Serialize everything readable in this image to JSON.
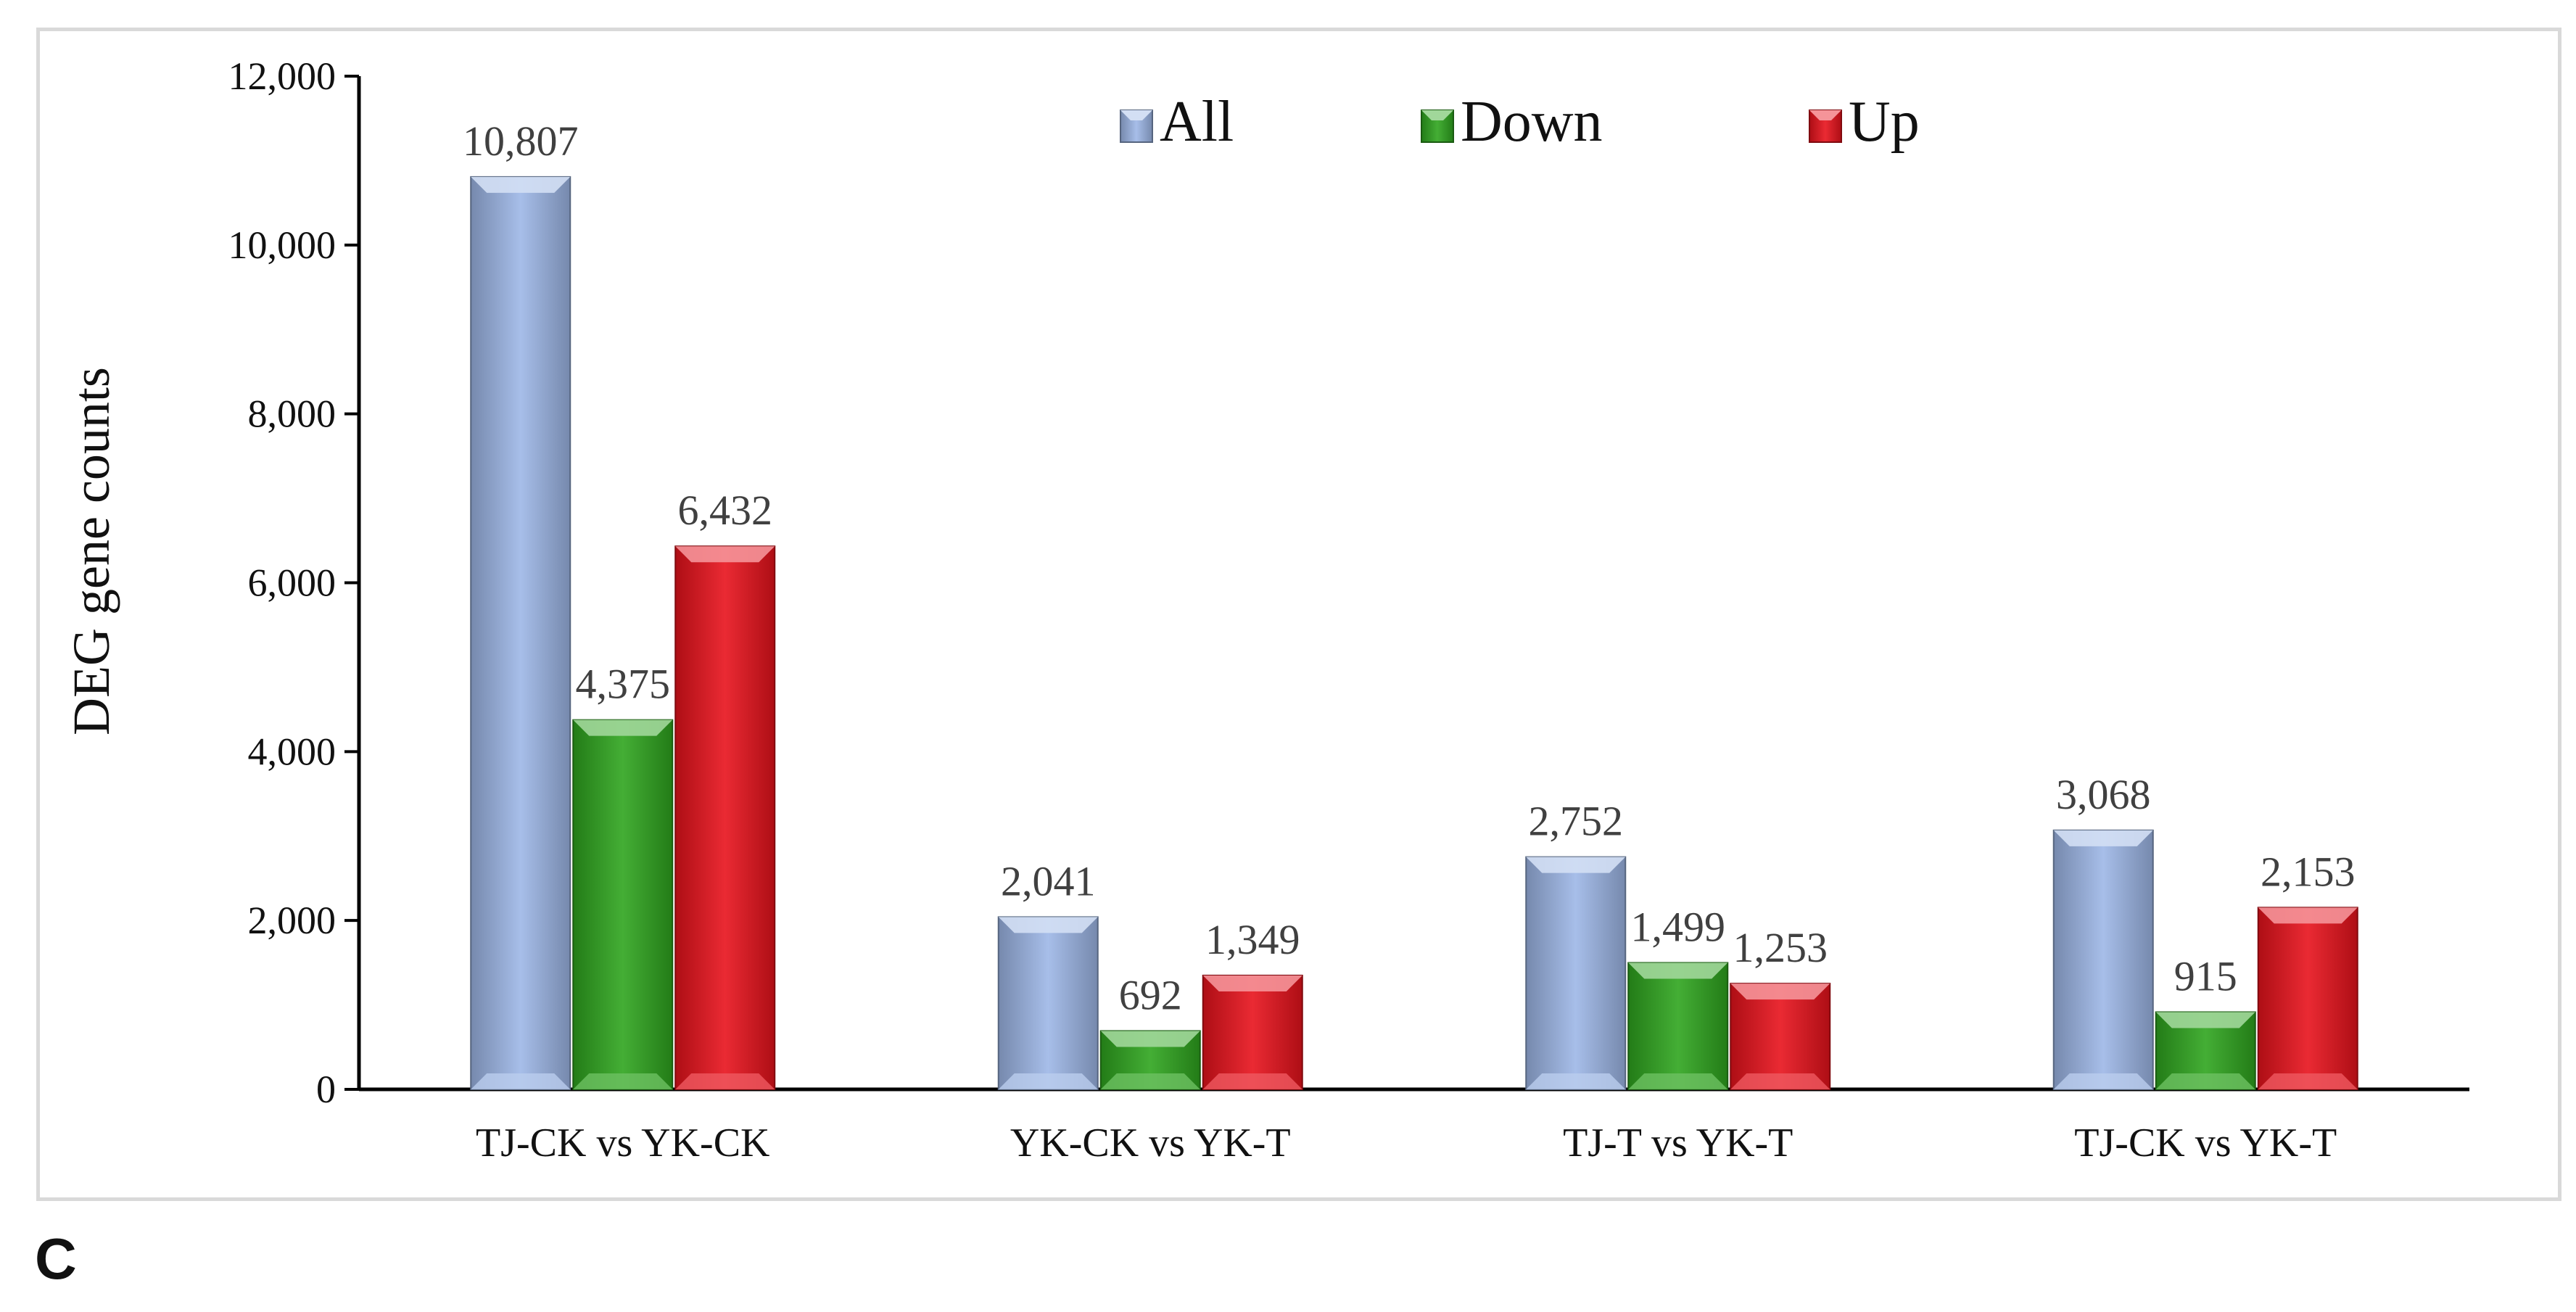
{
  "chart_data": {
    "type": "bar",
    "categories": [
      "TJ-CK vs YK-CK",
      "YK-CK vs YK-T",
      "TJ-T vs YK-T",
      "TJ-CK vs YK-T"
    ],
    "series": [
      {
        "name": "All",
        "values": [
          10807,
          2041,
          2752,
          3068
        ],
        "labels": [
          "10,807",
          "2,041",
          "2,752",
          "3,068"
        ],
        "color": "#9db7e6"
      },
      {
        "name": "Down",
        "values": [
          4375,
          692,
          1499,
          915
        ],
        "labels": [
          "4,375",
          "692",
          "1,499",
          "915"
        ],
        "color": "#2fa51f"
      },
      {
        "name": "Up",
        "values": [
          6432,
          1349,
          1253,
          2153
        ],
        "labels": [
          "6,432",
          "1,349",
          "1,253",
          "2,153"
        ],
        "color": "#e8121c"
      }
    ],
    "ylabel": "DEG gene counts",
    "xlabel": "",
    "ylim": [
      0,
      12000
    ],
    "yticks": [
      0,
      2000,
      4000,
      6000,
      8000,
      10000,
      12000
    ],
    "ytick_labels": [
      "0",
      "2,000",
      "4,000",
      "6,000",
      "8,000",
      "10,000",
      "12,000"
    ],
    "legend_position": "top-center",
    "grid": false
  },
  "panel_label": "C"
}
